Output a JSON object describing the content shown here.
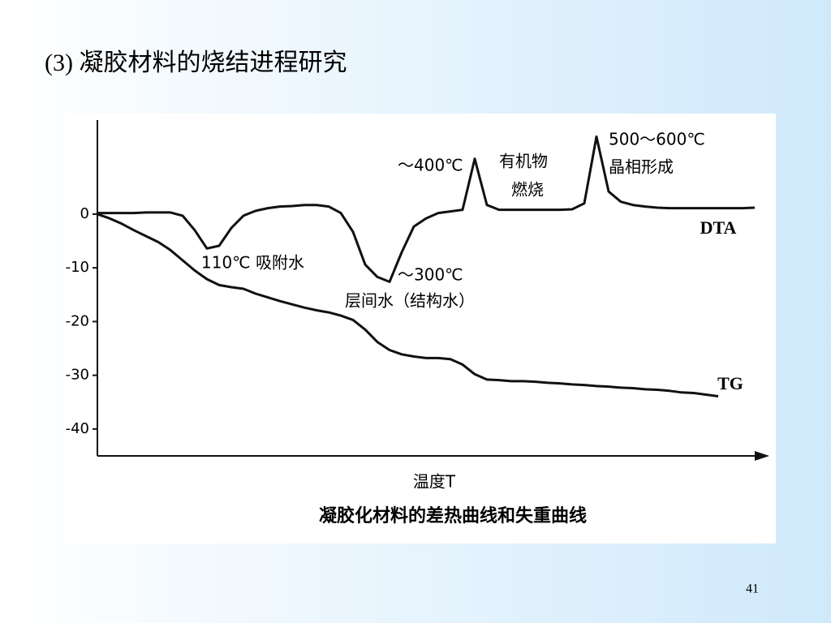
{
  "slide": {
    "title": "(3)  凝胶材料的烧结进程研究",
    "page_number": "41"
  },
  "chart_data": {
    "type": "line",
    "title": "凝胶化材料的差热曲线和失重曲线",
    "xlabel": "温度T",
    "ylim": [
      -45,
      17.5
    ],
    "yticks": [
      0,
      -10,
      -20,
      -30,
      -40
    ],
    "annotations": [
      "～400℃",
      "有机物",
      "燃烧",
      "500～600℃",
      "晶相形成",
      "110℃ 吸附水",
      "～300℃",
      "层间水（结构水）"
    ],
    "series": [
      {
        "name": "DTA",
        "color": "#111111",
        "values": [
          0.2,
          0.2,
          0.2,
          0.2,
          0.3,
          0.3,
          0.3,
          -0.3,
          -3,
          -6.4,
          -5.9,
          -2.6,
          -0.3,
          0.6,
          1.1,
          1.4,
          1.5,
          1.7,
          1.7,
          1.4,
          0.2,
          -3.3,
          -9.4,
          -11.7,
          -12.6,
          -7.1,
          -2.3,
          -0.8,
          0.2,
          0.5,
          0.8,
          10.3,
          1.7,
          0.8,
          0.8,
          0.8,
          0.8,
          0.8,
          0.8,
          0.9,
          2,
          14.4,
          4.2,
          2.3,
          1.7,
          1.4,
          1.2,
          1.1,
          1.1,
          1.1,
          1.1,
          1.1,
          1.1,
          1.1,
          1.2
        ]
      },
      {
        "name": "TG",
        "color": "#111111",
        "values": [
          0,
          -0.8,
          -1.8,
          -3,
          -4.1,
          -5.2,
          -6.7,
          -8.6,
          -10.5,
          -12.1,
          -13.2,
          -13.6,
          -13.9,
          -14.8,
          -15.5,
          -16.2,
          -16.8,
          -17.4,
          -17.9,
          -18.3,
          -18.9,
          -19.7,
          -21.5,
          -23.8,
          -25.3,
          -26.1,
          -26.5,
          -26.8,
          -26.8,
          -27,
          -28,
          -29.8,
          -30.8,
          -30.9,
          -31.1,
          -31.1,
          -31.2,
          -31.4,
          -31.5,
          -31.7,
          -31.8,
          -32,
          -32.1,
          -32.3,
          -32.4,
          -32.6,
          -32.7,
          -32.9,
          -33.2,
          -33.3,
          -33.6,
          -33.9,
          null,
          null,
          null
        ]
      }
    ]
  }
}
